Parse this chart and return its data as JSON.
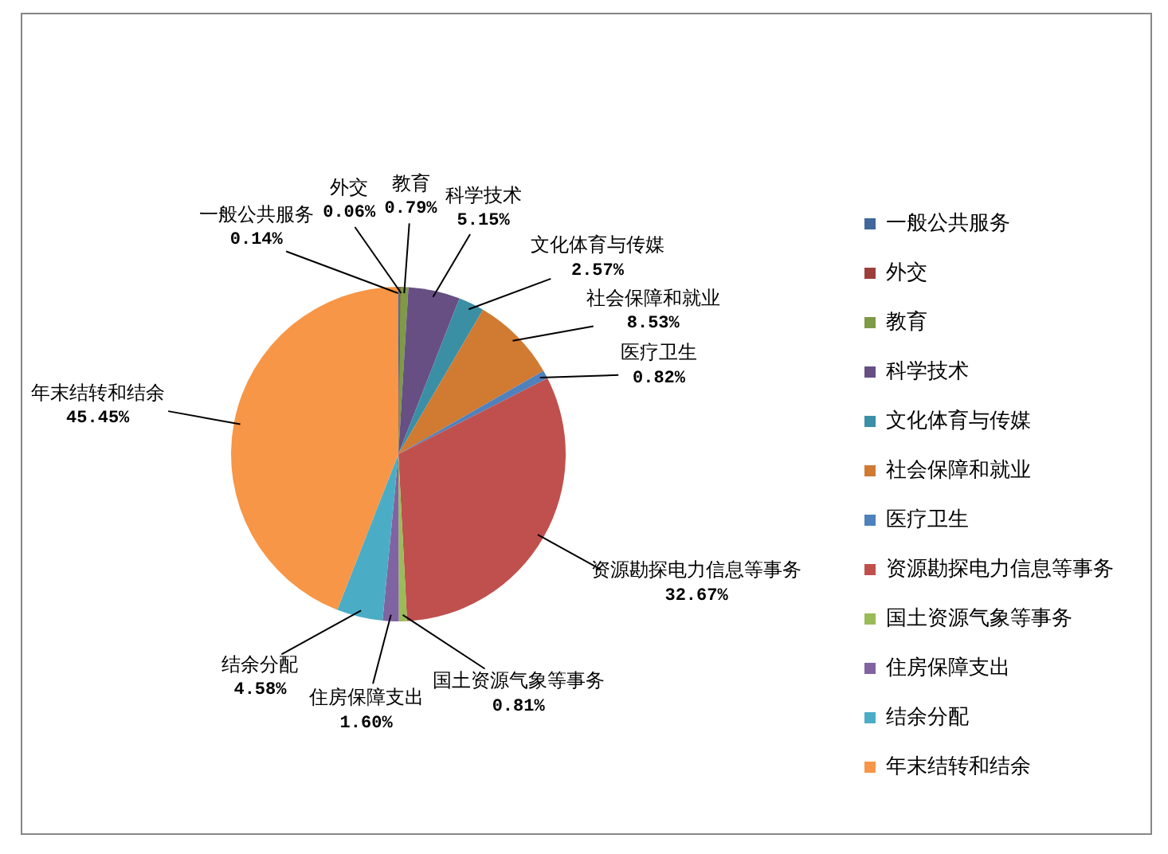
{
  "chart_data": {
    "type": "pie",
    "categories": [
      "一般公共服务",
      "外交",
      "教育",
      "科学技术",
      "文化体育与传媒",
      "社会保障和就业",
      "医疗卫生",
      "资源勘探电力信息等事务",
      "国土资源气象等事务",
      "住房保障支出",
      "结余分配",
      "年末结转和结余"
    ],
    "values": [
      0.14,
      0.06,
      0.79,
      5.15,
      2.57,
      8.53,
      0.82,
      32.67,
      0.81,
      1.6,
      4.58,
      45.45
    ],
    "value_labels": [
      "0.14%",
      "0.06%",
      "0.79%",
      "5.15%",
      "2.57%",
      "8.53%",
      "0.82%",
      "32.67%",
      "0.81%",
      "1.60%",
      "4.58%",
      "45.45%"
    ],
    "colors": [
      "#41679b",
      "#9b3f3c",
      "#7e9a47",
      "#674f84",
      "#3a8fa5",
      "#d07a32",
      "#4f81bd",
      "#c0504d",
      "#9bbb59",
      "#8064a2",
      "#4bacc6",
      "#f79646"
    ],
    "legend": "right"
  }
}
